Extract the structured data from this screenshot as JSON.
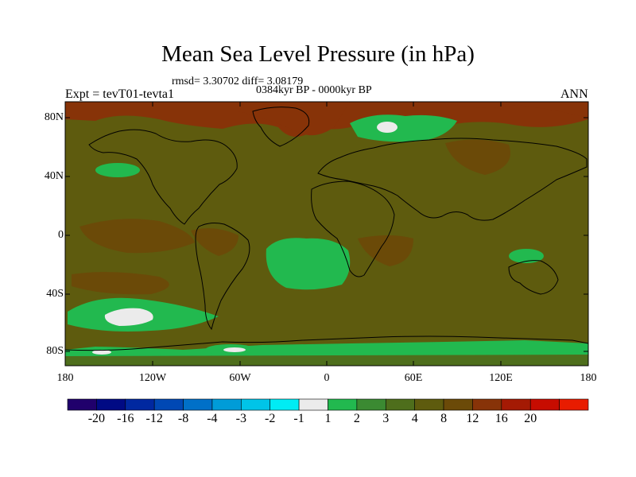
{
  "title": "Mean Sea Level Pressure (in hPa)",
  "stats_line": "rmsd= 3.30702 diff= 3.08179",
  "period_line": "0384kyr BP - 0000kyr BP",
  "experiment_label": "Expt = tevT01-tevta1",
  "season_label": "ANN",
  "lat_ticks": [
    "80N",
    "40N",
    "0",
    "40S",
    "80S"
  ],
  "lon_ticks": [
    "180",
    "120W",
    "60W",
    "0",
    "60E",
    "120E",
    "180"
  ],
  "colorbar": {
    "colors": [
      "#20006c",
      "#000a84",
      "#0028a0",
      "#0048b4",
      "#0070c8",
      "#009cd8",
      "#00c4e8",
      "#00ecf4",
      "#ebebeb",
      "#22b94f",
      "#3b8a32",
      "#4e6e1c",
      "#5e5b0e",
      "#6b4a08",
      "#873308",
      "#a41a04",
      "#c70c00",
      "#e81c00"
    ],
    "labels": [
      "-20",
      "-16",
      "-12",
      "-8",
      "-4",
      "-3",
      "-2",
      "-1",
      "1",
      "2",
      "3",
      "4",
      "8",
      "12",
      "16",
      "20"
    ]
  },
  "map_colors": {
    "base": "#5e5b0e",
    "positive_low": "#4e6e1c",
    "positive_mid": "#3b8a32",
    "green_bright": "#22b94f",
    "brown": "#6b4a08",
    "red_brown": "#873308",
    "near_zero": "#ebebeb",
    "coast": "#000000"
  }
}
